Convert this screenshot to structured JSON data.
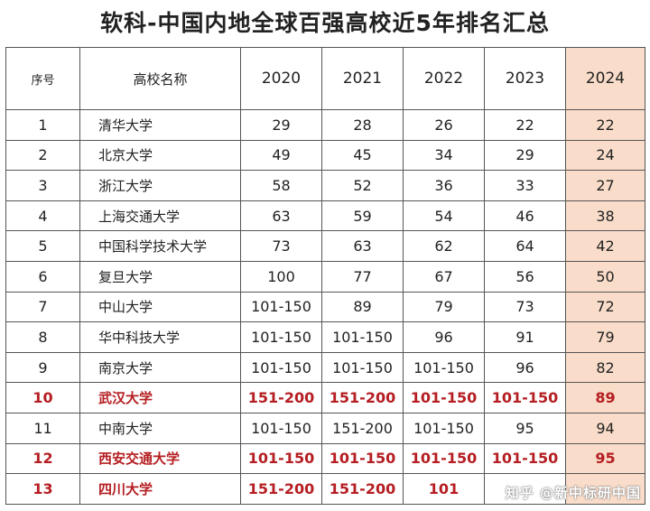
{
  "title": "软科-中国内地全球百强高校近5年排名汇总",
  "highlight_color": "#f9dcc9",
  "red_color": "#b51e22",
  "headers": [
    "序号",
    "高校名称",
    "2020",
    "2021",
    "2022",
    "2023",
    "2024"
  ],
  "rows": [
    {
      "cells": [
        "1",
        "清华大学",
        "29",
        "28",
        "26",
        "22",
        "22"
      ],
      "red": false
    },
    {
      "cells": [
        "2",
        "北京大学",
        "49",
        "45",
        "34",
        "29",
        "24"
      ],
      "red": false
    },
    {
      "cells": [
        "3",
        "浙江大学",
        "58",
        "52",
        "36",
        "33",
        "27"
      ],
      "red": false
    },
    {
      "cells": [
        "4",
        "上海交通大学",
        "63",
        "59",
        "54",
        "46",
        "38"
      ],
      "red": false
    },
    {
      "cells": [
        "5",
        "中国科学技术大学",
        "73",
        "63",
        "62",
        "64",
        "42"
      ],
      "red": false
    },
    {
      "cells": [
        "6",
        "复旦大学",
        "100",
        "77",
        "67",
        "56",
        "50"
      ],
      "red": false
    },
    {
      "cells": [
        "7",
        "中山大学",
        "101-150",
        "89",
        "79",
        "73",
        "72"
      ],
      "red": false
    },
    {
      "cells": [
        "8",
        "华中科技大学",
        "101-150",
        "101-150",
        "96",
        "91",
        "79"
      ],
      "red": false
    },
    {
      "cells": [
        "9",
        "南京大学",
        "101-150",
        "101-150",
        "101-150",
        "96",
        "82"
      ],
      "red": false
    },
    {
      "cells": [
        "10",
        "武汉大学",
        "151-200",
        "151-200",
        "101-150",
        "101-150",
        "89"
      ],
      "red": true
    },
    {
      "cells": [
        "11",
        "中南大学",
        "101-150",
        "151-200",
        "101-150",
        "95",
        "94"
      ],
      "red": false
    },
    {
      "cells": [
        "12",
        "西安交通大学",
        "101-150",
        "101-150",
        "101-150",
        "101-150",
        "95"
      ],
      "red": true
    },
    {
      "cells": [
        "13",
        "四川大学",
        "151-200",
        "151-200",
        "101",
        "",
        ""
      ],
      "red": true
    }
  ],
  "watermark": "知乎 @新中标研中国"
}
